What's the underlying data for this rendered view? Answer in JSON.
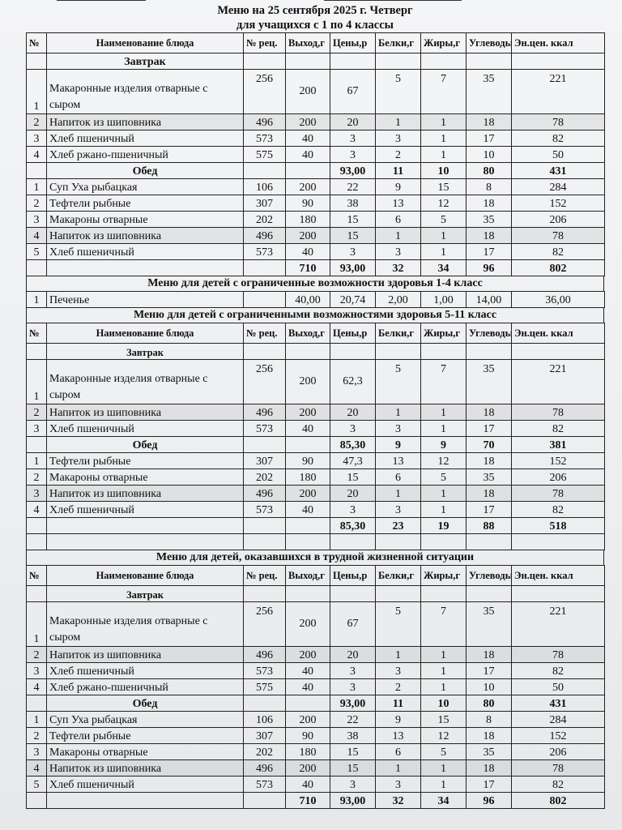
{
  "header": {
    "title": "Меню на 25 сентября 2025 г. Четверг",
    "subtitle": "для учащихся с 1 по 4 классы"
  },
  "columns": [
    "№",
    "Наименование блюда",
    "№ рец.",
    "Выход,г",
    "Цены,р",
    "Белки,г",
    "Жиры,г",
    "Углеводы",
    "Эн.цен. ккал"
  ],
  "sections": [
    {
      "title": "",
      "show_header": true,
      "rows": [
        {
          "kind": "group",
          "cells": [
            "",
            "Завтрак",
            "",
            "",
            "",
            "",
            "",
            "",
            ""
          ]
        },
        {
          "kind": "tall",
          "cells": [
            "1",
            "Макаронные изделия отварные с сыром",
            "256",
            "200",
            "67",
            "5",
            "7",
            "35",
            "221"
          ]
        },
        {
          "kind": "item",
          "shade": true,
          "cells": [
            "2",
            "Напиток из шиповника",
            "496",
            "200",
            "20",
            "1",
            "1",
            "18",
            "78"
          ]
        },
        {
          "kind": "item",
          "cells": [
            "3",
            "Хлеб пшеничный",
            "573",
            "40",
            "3",
            "3",
            "1",
            "17",
            "82"
          ]
        },
        {
          "kind": "item",
          "cells": [
            "4",
            "Хлеб ржано-пшеничный",
            "575",
            "40",
            "3",
            "2",
            "1",
            "10",
            "50"
          ]
        },
        {
          "kind": "group",
          "cells": [
            "",
            "Обед",
            "",
            "",
            "93,00",
            "11",
            "10",
            "80",
            "431"
          ]
        },
        {
          "kind": "item",
          "cells": [
            "1",
            "Суп Уха рыбацкая",
            "106",
            "200",
            "22",
            "9",
            "15",
            "8",
            "284"
          ]
        },
        {
          "kind": "item",
          "cells": [
            "2",
            "Тефтели рыбные",
            "307",
            "90",
            "38",
            "13",
            "12",
            "18",
            "152"
          ]
        },
        {
          "kind": "item",
          "cells": [
            "3",
            "Макароны отварные",
            "202",
            "180",
            "15",
            "6",
            "5",
            "35",
            "206"
          ]
        },
        {
          "kind": "item",
          "shade": true,
          "cells": [
            "4",
            "Напиток из шиповника",
            "496",
            "200",
            "15",
            "1",
            "1",
            "18",
            "78"
          ]
        },
        {
          "kind": "item",
          "cells": [
            "5",
            "Хлеб пшеничный",
            "573",
            "40",
            "3",
            "3",
            "1",
            "17",
            "82"
          ]
        },
        {
          "kind": "total",
          "cells": [
            "",
            "",
            "",
            "710",
            "93,00",
            "32",
            "34",
            "96",
            "802"
          ]
        }
      ]
    },
    {
      "title": "Меню для детей с ограниченные возможности здоровья 1-4 класс",
      "show_header": false,
      "rows": [
        {
          "kind": "item",
          "cells": [
            "1",
            "Печенье",
            "",
            "40,00",
            "20,74",
            "2,00",
            "1,00",
            "14,00",
            "36,00"
          ]
        }
      ]
    },
    {
      "title": "Меню для детей с ограниченными возможностями здоровья 5-11 класс",
      "show_header": true,
      "rows": [
        {
          "kind": "group",
          "small": true,
          "cells": [
            "",
            "Завтрак",
            "",
            "",
            "",
            "",
            "",
            "",
            ""
          ]
        },
        {
          "kind": "tall",
          "cells": [
            "1",
            "Макаронные изделия отварные с сыром",
            "256",
            "200",
            "62,3",
            "5",
            "7",
            "35",
            "221"
          ]
        },
        {
          "kind": "item",
          "shade": true,
          "cells": [
            "2",
            "Напиток из шиповника",
            "496",
            "200",
            "20",
            "1",
            "1",
            "18",
            "78"
          ]
        },
        {
          "kind": "item",
          "cells": [
            "3",
            "Хлеб пшеничный",
            "573",
            "40",
            "3",
            "3",
            "1",
            "17",
            "82"
          ]
        },
        {
          "kind": "group",
          "cells": [
            "",
            "Обед",
            "",
            "",
            "85,30",
            "9",
            "9",
            "70",
            "381"
          ]
        },
        {
          "kind": "item",
          "cells": [
            "1",
            "Тефтели рыбные",
            "307",
            "90",
            "47,3",
            "13",
            "12",
            "18",
            "152"
          ]
        },
        {
          "kind": "item",
          "cells": [
            "2",
            "Макароны отварные",
            "202",
            "180",
            "15",
            "6",
            "5",
            "35",
            "206"
          ]
        },
        {
          "kind": "item",
          "shade": true,
          "cells": [
            "3",
            "Напиток из шиповника",
            "496",
            "200",
            "20",
            "1",
            "1",
            "18",
            "78"
          ]
        },
        {
          "kind": "item",
          "cells": [
            "4",
            "Хлеб пшеничный",
            "573",
            "40",
            "3",
            "3",
            "1",
            "17",
            "82"
          ]
        },
        {
          "kind": "total",
          "cells": [
            "",
            "",
            "",
            "",
            "85,30",
            "23",
            "19",
            "88",
            "518"
          ]
        },
        {
          "kind": "blank",
          "cells": [
            "",
            "",
            "",
            "",
            "",
            "",
            "",
            "",
            ""
          ]
        }
      ]
    },
    {
      "title": "Меню для детей, оказавшихся в трудной жизненной ситуации",
      "show_header": true,
      "rows": [
        {
          "kind": "group",
          "small": true,
          "cells": [
            "",
            "Завтрак",
            "",
            "",
            "",
            "",
            "",
            "",
            ""
          ]
        },
        {
          "kind": "tall",
          "cells": [
            "1",
            "Макаронные изделия отварные с сыром",
            "256",
            "200",
            "67",
            "5",
            "7",
            "35",
            "221"
          ]
        },
        {
          "kind": "item",
          "shade": true,
          "cells": [
            "2",
            "Напиток из шиповника",
            "496",
            "200",
            "20",
            "1",
            "1",
            "18",
            "78"
          ]
        },
        {
          "kind": "item",
          "cells": [
            "3",
            "Хлеб пшеничный",
            "573",
            "40",
            "3",
            "3",
            "1",
            "17",
            "82"
          ]
        },
        {
          "kind": "item",
          "cells": [
            "4",
            "Хлеб ржано-пшеничный",
            "575",
            "40",
            "3",
            "2",
            "1",
            "10",
            "50"
          ]
        },
        {
          "kind": "group",
          "cells": [
            "",
            "Обед",
            "",
            "",
            "93,00",
            "11",
            "10",
            "80",
            "431"
          ]
        },
        {
          "kind": "item",
          "cells": [
            "1",
            "Суп Уха рыбацкая",
            "106",
            "200",
            "22",
            "9",
            "15",
            "8",
            "284"
          ]
        },
        {
          "kind": "item",
          "cells": [
            "2",
            "Тефтели рыбные",
            "307",
            "90",
            "38",
            "13",
            "12",
            "18",
            "152"
          ]
        },
        {
          "kind": "item",
          "cells": [
            "3",
            "Макароны отварные",
            "202",
            "180",
            "15",
            "6",
            "5",
            "35",
            "206"
          ]
        },
        {
          "kind": "item",
          "shade": true,
          "cells": [
            "4",
            "Напиток из шиповника",
            "496",
            "200",
            "15",
            "1",
            "1",
            "18",
            "78"
          ]
        },
        {
          "kind": "item",
          "cells": [
            "5",
            "Хлеб пшеничный",
            "573",
            "40",
            "3",
            "3",
            "1",
            "17",
            "82"
          ]
        },
        {
          "kind": "total",
          "cells": [
            "",
            "",
            "",
            "710",
            "93,00",
            "32",
            "34",
            "96",
            "802"
          ]
        }
      ]
    }
  ]
}
